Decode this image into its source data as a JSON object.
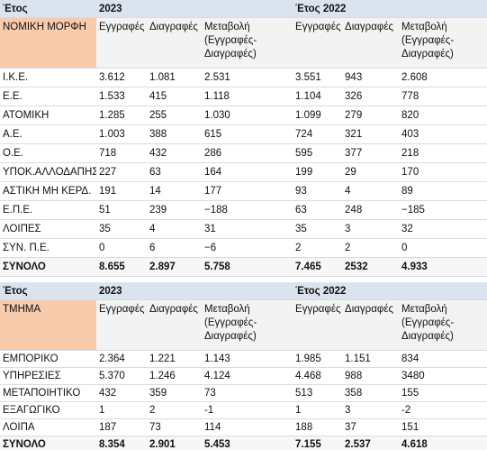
{
  "tables": [
    {
      "header": {
        "label": "Έτος",
        "year1": "2023",
        "year2": "Έτος 2022"
      },
      "group_label": "ΝΟΜΙΚΗ ΜΟΡΦΗ",
      "columns": [
        "Εγγραφές",
        "Διαγραφές",
        "Μεταβολή (Εγγραφές-Διαγραφές)",
        "Εγγραφές",
        "Διαγραφές",
        "Μεταβολή (Εγγραφές-Διαγραφές)"
      ],
      "rows": [
        [
          "Ι.Κ.Ε.",
          "3.612",
          "1.081",
          "2.531",
          "3.551",
          "943",
          "2.608"
        ],
        [
          "Ε.Ε.",
          "1.533",
          "415",
          "1.118",
          "1.104",
          "326",
          "778"
        ],
        [
          "ΑΤΟΜΙΚΗ",
          "1.285",
          "255",
          "1.030",
          "1.099",
          "279",
          "820"
        ],
        [
          "Α.Ε.",
          "1.003",
          "388",
          "615",
          "724",
          "321",
          "403"
        ],
        [
          "Ο.Ε.",
          "718",
          "432",
          "286",
          "595",
          "377",
          "218"
        ],
        [
          "ΥΠΟΚ.ΑΛΛΟΔΑΠΗΣ",
          "227",
          "63",
          "164",
          "199",
          "29",
          "170"
        ],
        [
          "ΑΣΤΙΚΗ ΜΗ ΚΕΡΔ.",
          "191",
          "14",
          "177",
          "93",
          "4",
          "89"
        ],
        [
          "Ε.Π.Ε.",
          "51",
          "239",
          "−188",
          "63",
          "248",
          "−185"
        ],
        [
          "ΛΟΙΠΕΣ",
          "35",
          "4",
          "31",
          "35",
          "3",
          "32"
        ],
        [
          "ΣΥΝ. Π.Ε.",
          "0",
          "6",
          "−6",
          "2",
          "2",
          "0"
        ],
        [
          "ΣΥΝΟΛΟ",
          "8.655",
          "2.897",
          "5.758",
          "7.465",
          "2532",
          "4.933"
        ]
      ]
    },
    {
      "header": {
        "label": "Έτος",
        "year1": "2023",
        "year2": "Έτος 2022"
      },
      "group_label": "ΤΜΗΜΑ",
      "columns": [
        "Εγγραφές",
        "Διαγραφές",
        "Μεταβολή (Εγγραφές-Διαγραφές)",
        "Εγγραφές",
        "Διαγραφές",
        "Μεταβολή (Εγγραφές-Διαγραφές)"
      ],
      "rows": [
        [
          "ΕΜΠΟΡΙΚΟ",
          "2.364",
          "1.221",
          "1.143",
          "1.985",
          "1.151",
          "834"
        ],
        [
          "ΥΠΗΡΕΣΙΕΣ",
          "5.370",
          "1.246",
          "4.124",
          "4.468",
          "988",
          "3480"
        ],
        [
          "ΜΕΤΑΠΟΙΗΤΙΚΟ",
          "432",
          "359",
          "73",
          "513",
          "358",
          "155"
        ],
        [
          "ΕΞΑΓΩΓΙΚΟ",
          "1",
          "2",
          "-1",
          "1",
          "3",
          "-2"
        ],
        [
          "ΛΟΙΠΑ",
          "187",
          "73",
          "114",
          "188",
          "37",
          "151"
        ],
        [
          "ΣΥΝΟΛΟ",
          "8.354",
          "2.901",
          "5.453",
          "7.155",
          "2.537",
          "4.618"
        ]
      ]
    }
  ]
}
